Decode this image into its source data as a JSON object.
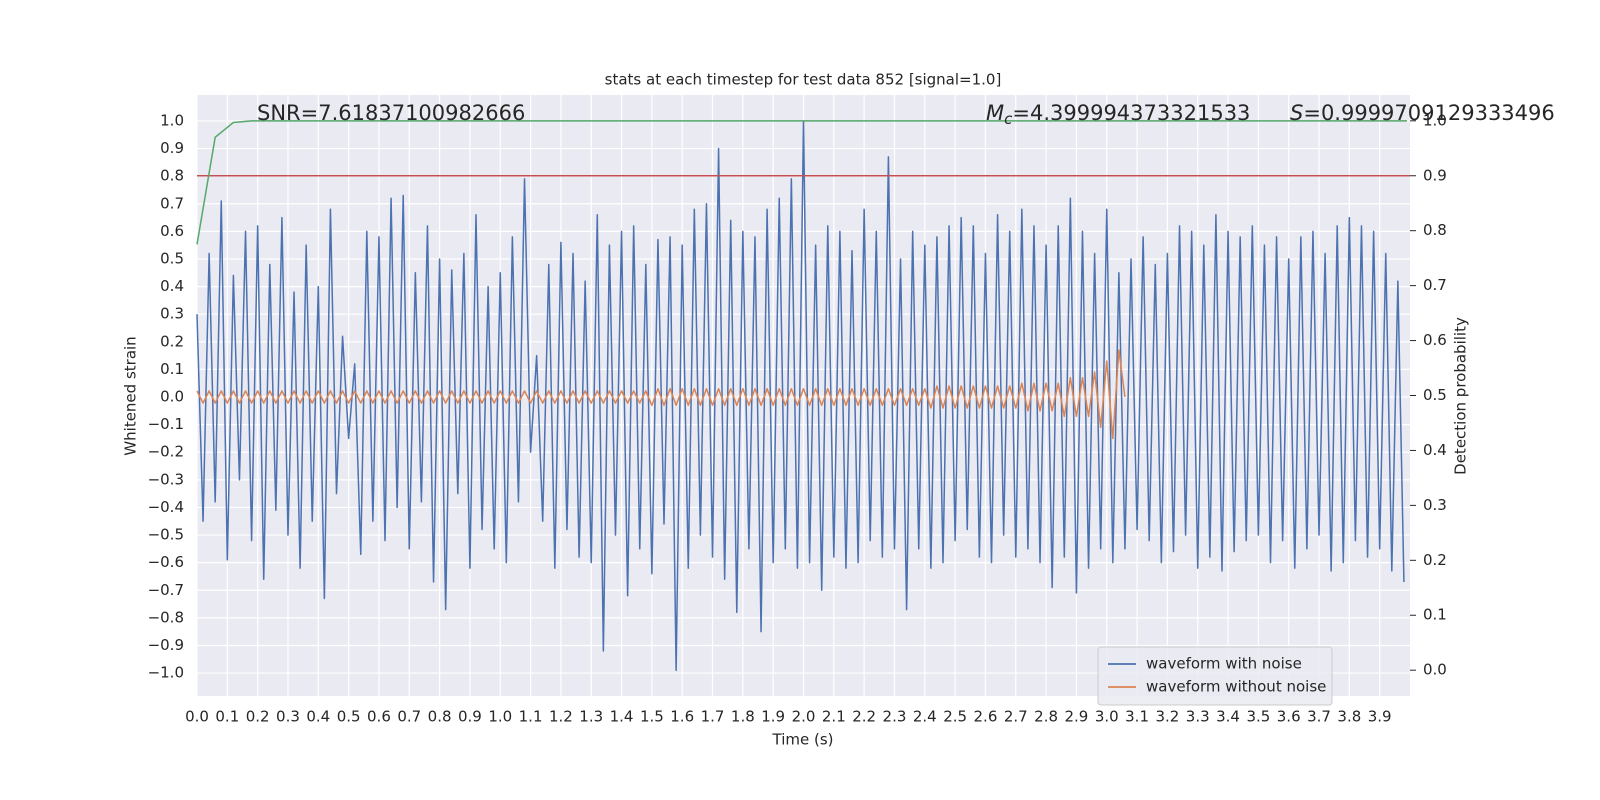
{
  "chart_data": {
    "type": "line",
    "title": "stats at each timestep for test data 852 [signal=1.0]",
    "x_label": "Time (s)",
    "y_label": "Whitened strain",
    "y2_label": "Detection probability",
    "annotations": [
      {
        "text": "SNR=7.61837100982666"
      },
      {
        "symbol": "M",
        "subscript": "c",
        "text": "=4.399994373321533"
      },
      {
        "symbol": "S",
        "text": "=0.9999709129333496"
      }
    ],
    "grid": true,
    "legend": "lower right",
    "background": "#eaeaf2",
    "xlim": [
      0,
      4.0
    ],
    "ylim": [
      -1.083,
      1.094
    ],
    "y2lim": [
      -0.047,
      1.047
    ],
    "xticks": [
      {
        "value": 0,
        "label": "0.0"
      },
      {
        "value": 0.1,
        "label": "0.1"
      },
      {
        "value": 0.2,
        "label": "0.2"
      },
      {
        "value": 0.3,
        "label": "0.3"
      },
      {
        "value": 0.4,
        "label": "0.4"
      },
      {
        "value": 0.5,
        "label": "0.5"
      },
      {
        "value": 0.6,
        "label": "0.6"
      },
      {
        "value": 0.7,
        "label": "0.7"
      },
      {
        "value": 0.8,
        "label": "0.8"
      },
      {
        "value": 0.9,
        "label": "0.9"
      },
      {
        "value": 1,
        "label": "1.0"
      },
      {
        "value": 1.1,
        "label": "1.1"
      },
      {
        "value": 1.2,
        "label": "1.2"
      },
      {
        "value": 1.3,
        "label": "1.3"
      },
      {
        "value": 1.4,
        "label": "1.4"
      },
      {
        "value": 1.5,
        "label": "1.5"
      },
      {
        "value": 1.6,
        "label": "1.6"
      },
      {
        "value": 1.7,
        "label": "1.7"
      },
      {
        "value": 1.8,
        "label": "1.8"
      },
      {
        "value": 1.9,
        "label": "1.9"
      },
      {
        "value": 2,
        "label": "2.0"
      },
      {
        "value": 2.1,
        "label": "2.1"
      },
      {
        "value": 2.2,
        "label": "2.2"
      },
      {
        "value": 2.3,
        "label": "2.3"
      },
      {
        "value": 2.4,
        "label": "2.4"
      },
      {
        "value": 2.5,
        "label": "2.5"
      },
      {
        "value": 2.6,
        "label": "2.6"
      },
      {
        "value": 2.7,
        "label": "2.7"
      },
      {
        "value": 2.8,
        "label": "2.8"
      },
      {
        "value": 2.9,
        "label": "2.9"
      },
      {
        "value": 3,
        "label": "3.0"
      },
      {
        "value": 3.1,
        "label": "3.1"
      },
      {
        "value": 3.2,
        "label": "3.2"
      },
      {
        "value": 3.3,
        "label": "3.3"
      },
      {
        "value": 3.4,
        "label": "3.4"
      },
      {
        "value": 3.5,
        "label": "3.5"
      },
      {
        "value": 3.6,
        "label": "3.6"
      },
      {
        "value": 3.7,
        "label": "3.7"
      },
      {
        "value": 3.8,
        "label": "3.8"
      },
      {
        "value": 3.9,
        "label": "3.9"
      }
    ],
    "yticks": [
      {
        "value": -1,
        "label": "−1.0"
      },
      {
        "value": -0.9,
        "label": "−0.9"
      },
      {
        "value": -0.8,
        "label": "−0.8"
      },
      {
        "value": -0.7,
        "label": "−0.7"
      },
      {
        "value": -0.6,
        "label": "−0.6"
      },
      {
        "value": -0.5,
        "label": "−0.5"
      },
      {
        "value": -0.4,
        "label": "−0.4"
      },
      {
        "value": -0.3,
        "label": "−0.3"
      },
      {
        "value": -0.2,
        "label": "−0.2"
      },
      {
        "value": -0.1,
        "label": "−0.1"
      },
      {
        "value": 0,
        "label": "0.0"
      },
      {
        "value": 0.1,
        "label": "0.1"
      },
      {
        "value": 0.2,
        "label": "0.2"
      },
      {
        "value": 0.3,
        "label": "0.3"
      },
      {
        "value": 0.4,
        "label": "0.4"
      },
      {
        "value": 0.5,
        "label": "0.5"
      },
      {
        "value": 0.6,
        "label": "0.6"
      },
      {
        "value": 0.7,
        "label": "0.7"
      },
      {
        "value": 0.8,
        "label": "0.8"
      },
      {
        "value": 0.9,
        "label": "0.9"
      },
      {
        "value": 1,
        "label": "1.0"
      }
    ],
    "y2ticks": [
      {
        "value": 0,
        "label": "0.0"
      },
      {
        "value": 0.1,
        "label": "0.1"
      },
      {
        "value": 0.2,
        "label": "0.2"
      },
      {
        "value": 0.3,
        "label": "0.3"
      },
      {
        "value": 0.4,
        "label": "0.4"
      },
      {
        "value": 0.5,
        "label": "0.5"
      },
      {
        "value": 0.6,
        "label": "0.6"
      },
      {
        "value": 0.7,
        "label": "0.7"
      },
      {
        "value": 0.8,
        "label": "0.8"
      },
      {
        "value": 0.9,
        "label": "0.9"
      },
      {
        "value": 1,
        "label": "1.0"
      }
    ],
    "x": [
      0,
      0.02,
      0.04,
      0.06,
      0.08,
      0.1,
      0.12,
      0.14,
      0.16,
      0.18,
      0.2,
      0.22,
      0.24,
      0.26,
      0.28,
      0.3,
      0.32,
      0.34,
      0.36,
      0.38,
      0.4,
      0.42,
      0.44,
      0.46,
      0.48,
      0.5,
      0.52,
      0.54,
      0.56,
      0.58,
      0.6,
      0.62,
      0.64,
      0.66,
      0.68,
      0.7,
      0.72,
      0.74,
      0.76,
      0.78,
      0.8,
      0.82,
      0.84,
      0.86,
      0.88,
      0.9,
      0.92,
      0.94,
      0.96,
      0.98,
      1,
      1.02,
      1.04,
      1.06,
      1.08,
      1.1,
      1.12,
      1.14,
      1.16,
      1.18,
      1.2,
      1.22,
      1.24,
      1.26,
      1.28,
      1.3,
      1.32,
      1.34,
      1.36,
      1.38,
      1.4,
      1.42,
      1.44,
      1.46,
      1.48,
      1.5,
      1.52,
      1.54,
      1.56,
      1.58,
      1.6,
      1.62,
      1.64,
      1.66,
      1.68,
      1.7,
      1.72,
      1.74,
      1.76,
      1.78,
      1.8,
      1.82,
      1.84,
      1.86,
      1.88,
      1.9,
      1.92,
      1.94,
      1.96,
      1.98,
      2,
      2.02,
      2.04,
      2.06,
      2.08,
      2.1,
      2.12,
      2.14,
      2.16,
      2.18,
      2.2,
      2.22,
      2.24,
      2.26,
      2.28,
      2.3,
      2.32,
      2.34,
      2.36,
      2.38,
      2.4,
      2.42,
      2.44,
      2.46,
      2.48,
      2.5,
      2.52,
      2.54,
      2.56,
      2.58,
      2.6,
      2.62,
      2.64,
      2.66,
      2.68,
      2.7,
      2.72,
      2.74,
      2.76,
      2.78,
      2.8,
      2.82,
      2.84,
      2.86,
      2.88,
      2.9,
      2.92,
      2.94,
      2.96,
      2.98,
      3,
      3.02,
      3.04,
      3.06,
      3.08,
      3.1,
      3.12,
      3.14,
      3.16,
      3.18,
      3.2,
      3.22,
      3.24,
      3.26,
      3.28,
      3.3,
      3.32,
      3.34,
      3.36,
      3.38,
      3.4,
      3.42,
      3.44,
      3.46,
      3.48,
      3.5,
      3.52,
      3.54,
      3.56,
      3.58,
      3.6,
      3.62,
      3.64,
      3.66,
      3.68,
      3.7,
      3.72,
      3.74,
      3.76,
      3.78,
      3.8,
      3.82,
      3.84,
      3.86,
      3.88,
      3.9,
      3.92,
      3.94,
      3.96,
      3.98
    ],
    "series": [
      {
        "name": "waveform with noise",
        "color": "#4c72b0",
        "values": [
          0.3,
          -0.45,
          0.52,
          -0.38,
          0.71,
          -0.59,
          0.44,
          -0.3,
          0.6,
          -0.52,
          0.62,
          -0.66,
          0.48,
          -0.41,
          0.65,
          -0.5,
          0.38,
          -0.62,
          0.55,
          -0.45,
          0.4,
          -0.73,
          0.68,
          -0.35,
          0.22,
          -0.15,
          0.12,
          -0.57,
          0.6,
          -0.45,
          0.58,
          -0.52,
          0.72,
          -0.4,
          0.73,
          -0.55,
          0.45,
          -0.38,
          0.62,
          -0.67,
          0.5,
          -0.77,
          0.46,
          -0.35,
          0.52,
          -0.62,
          0.66,
          -0.48,
          0.4,
          -0.55,
          0.45,
          -0.6,
          0.58,
          -0.38,
          0.79,
          -0.2,
          0.15,
          -0.45,
          0.48,
          -0.62,
          0.56,
          -0.48,
          0.52,
          -0.58,
          0.42,
          -0.6,
          0.66,
          -0.92,
          0.55,
          -0.5,
          0.6,
          -0.72,
          0.62,
          -0.55,
          0.48,
          -0.64,
          0.57,
          -0.46,
          0.58,
          -0.99,
          0.55,
          -0.62,
          0.68,
          -0.5,
          0.7,
          -0.58,
          0.9,
          -0.66,
          0.64,
          -0.78,
          0.6,
          -0.55,
          0.58,
          -0.85,
          0.68,
          -0.6,
          0.72,
          -0.55,
          0.79,
          -0.62,
          1.0,
          -0.6,
          0.55,
          -0.7,
          0.62,
          -0.58,
          0.6,
          -0.62,
          0.53,
          -0.6,
          0.68,
          -0.52,
          0.6,
          -0.58,
          0.87,
          -0.55,
          0.5,
          -0.77,
          0.6,
          -0.55,
          0.55,
          -0.62,
          0.58,
          -0.6,
          0.62,
          -0.52,
          0.65,
          -0.48,
          0.62,
          -0.58,
          0.52,
          -0.6,
          0.66,
          -0.5,
          0.6,
          -0.58,
          0.68,
          -0.55,
          0.62,
          -0.6,
          0.55,
          -0.69,
          0.62,
          -0.58,
          0.72,
          -0.71,
          0.6,
          -0.62,
          0.52,
          -0.55,
          0.68,
          -0.6,
          0.45,
          -0.55,
          0.5,
          -0.48,
          0.58,
          -0.52,
          0.48,
          -0.6,
          0.52,
          -0.56,
          0.62,
          -0.5,
          0.6,
          -0.62,
          0.55,
          -0.58,
          0.66,
          -0.63,
          0.6,
          -0.56,
          0.58,
          -0.52,
          0.62,
          -0.5,
          0.55,
          -0.6,
          0.58,
          -0.52,
          0.5,
          -0.62,
          0.58,
          -0.55,
          0.6,
          -0.5,
          0.52,
          -0.63,
          0.62,
          -0.6,
          0.65,
          -0.52,
          0.62,
          -0.58,
          0.6,
          -0.55,
          0.52,
          -0.63,
          0.42,
          -0.67
        ]
      },
      {
        "name": "waveform without noise",
        "color": "#dd8452",
        "values": [
          0.022,
          -0.022,
          0.022,
          -0.022,
          0.022,
          -0.022,
          0.022,
          -0.022,
          0.022,
          -0.022,
          0.022,
          -0.022,
          0.022,
          -0.022,
          0.022,
          -0.022,
          0.022,
          -0.022,
          0.022,
          -0.022,
          0.022,
          -0.022,
          0.022,
          -0.022,
          0.022,
          -0.022,
          0.022,
          -0.022,
          0.022,
          -0.022,
          0.022,
          -0.022,
          0.022,
          -0.022,
          0.022,
          -0.022,
          0.022,
          -0.022,
          0.022,
          -0.022,
          0.022,
          -0.022,
          0.022,
          -0.022,
          0.022,
          -0.022,
          0.022,
          -0.022,
          0.022,
          -0.022,
          0.022,
          -0.022,
          0.022,
          -0.022,
          0.022,
          -0.022,
          0.022,
          -0.022,
          0.022,
          -0.022,
          0.022,
          -0.022,
          0.022,
          -0.022,
          0.022,
          -0.022,
          0.022,
          -0.022,
          0.022,
          -0.022,
          0.022,
          -0.022,
          0.022,
          -0.022,
          0.022,
          -0.03,
          0.03,
          -0.03,
          0.03,
          -0.03,
          0.03,
          -0.03,
          0.03,
          -0.03,
          0.03,
          -0.03,
          0.03,
          -0.03,
          0.03,
          -0.03,
          0.03,
          -0.03,
          0.03,
          -0.03,
          0.03,
          -0.03,
          0.03,
          -0.03,
          0.03,
          -0.03,
          0.03,
          -0.03,
          0.03,
          -0.03,
          0.03,
          -0.03,
          0.03,
          -0.03,
          0.03,
          -0.03,
          0.03,
          -0.03,
          0.03,
          -0.03,
          0.03,
          -0.03,
          0.03,
          -0.03,
          0.03,
          -0.03,
          0.03,
          -0.04,
          0.04,
          -0.04,
          0.04,
          -0.04,
          0.04,
          -0.04,
          0.04,
          -0.04,
          0.04,
          -0.04,
          0.04,
          -0.04,
          0.04,
          -0.04,
          0.05,
          -0.05,
          0.05,
          -0.05,
          0.05,
          -0.05,
          0.05,
          -0.07,
          0.07,
          -0.07,
          0.07,
          -0.07,
          0.09,
          -0.11,
          0.13,
          -0.15,
          0.17,
          0,
          null,
          null,
          null,
          null,
          null,
          null,
          null,
          null,
          null,
          null,
          null,
          null,
          null,
          null,
          null,
          null,
          null,
          null,
          null,
          null,
          null,
          null,
          null,
          null,
          null,
          null,
          null,
          null,
          null,
          null,
          null,
          null,
          null,
          null,
          null,
          null,
          null,
          null,
          null,
          null,
          null,
          null,
          null,
          null,
          null,
          null
        ]
      }
    ],
    "detection": {
      "color": "#55a868",
      "axis": "y2",
      "x": [
        0,
        0.06,
        0.12,
        0.18,
        3.99
      ],
      "values": [
        0.775,
        0.97,
        0.997,
        1.0,
        1.0
      ]
    },
    "threshold": {
      "color": "#c44e52",
      "axis": "y2",
      "value": 0.9
    }
  }
}
